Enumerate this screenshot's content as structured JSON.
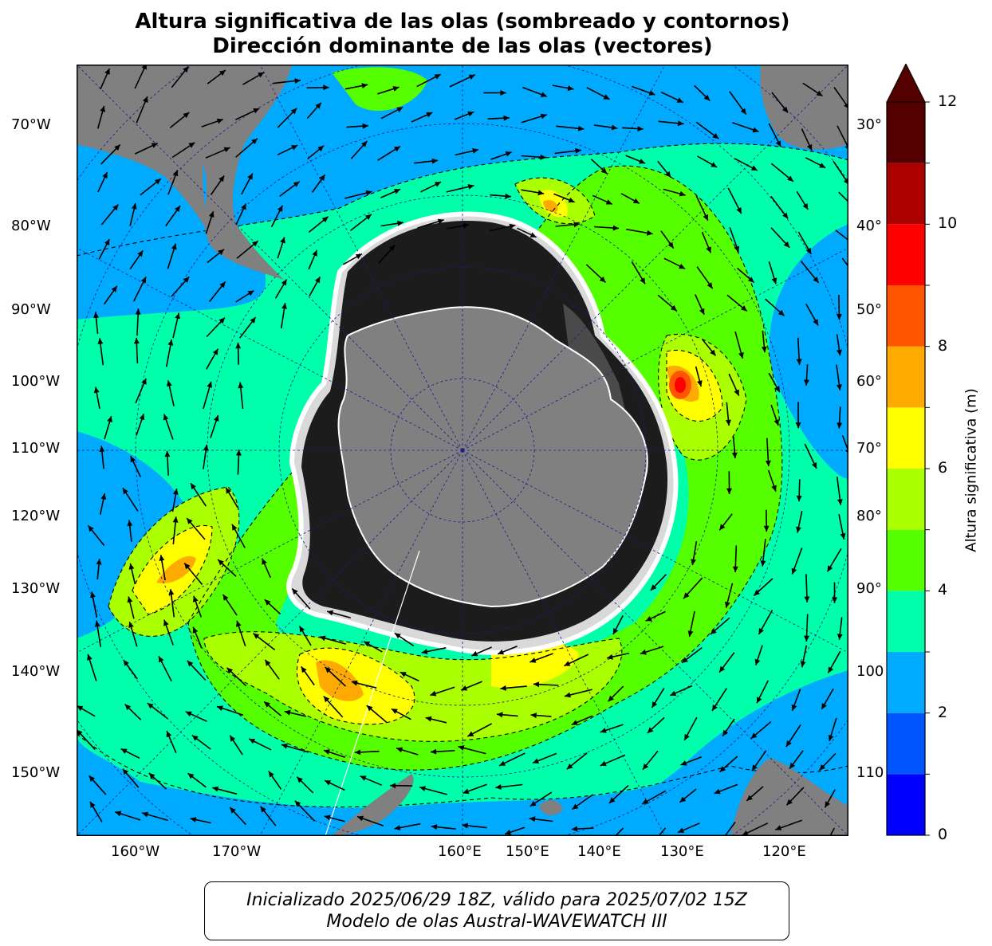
{
  "title_line1": "Altura significativa de las olas (sombreado y contornos)",
  "title_line2": "Dirección dominante de las olas (vectores)",
  "left_labels": [
    "70°W",
    "80°W",
    "90°W",
    "100°W",
    "110°W",
    "120°W",
    "130°W",
    "140°W",
    "150°W"
  ],
  "right_labels": [
    "30°",
    "40°",
    "50°",
    "60°",
    "70°",
    "80°",
    "90°",
    "100",
    "110"
  ],
  "bottom_labels": [
    "160°W",
    "170°W",
    "160°E",
    "150°E",
    "140°E",
    "130°E",
    "120°E"
  ],
  "colorbar": {
    "label": "Altura significativa (m)",
    "ticks": [
      "0",
      "2",
      "4",
      "6",
      "8",
      "10",
      "12"
    ],
    "tick_values": [
      0,
      2,
      4,
      6,
      8,
      10,
      12
    ],
    "range": [
      0,
      12
    ],
    "extend": "max",
    "levels": [
      {
        "from": 0,
        "to": 1,
        "color": "#0000ff"
      },
      {
        "from": 1,
        "to": 2,
        "color": "#0055ff"
      },
      {
        "from": 2,
        "to": 3,
        "color": "#00aaff"
      },
      {
        "from": 3,
        "to": 4,
        "color": "#00ffaa"
      },
      {
        "from": 4,
        "to": 5,
        "color": "#55ff00"
      },
      {
        "from": 5,
        "to": 6,
        "color": "#aaff00"
      },
      {
        "from": 6,
        "to": 7,
        "color": "#ffff00"
      },
      {
        "from": 7,
        "to": 8,
        "color": "#ffaa00"
      },
      {
        "from": 8,
        "to": 9,
        "color": "#ff5500"
      },
      {
        "from": 9,
        "to": 10,
        "color": "#ff0000"
      },
      {
        "from": 10,
        "to": 11,
        "color": "#aa0000"
      },
      {
        "from": 11,
        "to": 12,
        "color": "#550000"
      }
    ]
  },
  "colors": {
    "land": "#808080",
    "ice_dark": "#111111",
    "graticule": "#1a1a8c"
  },
  "footer_line1": "Inicializado 2025/06/29 18Z, válido para 2025/07/02 15Z",
  "footer_line2": "Modelo de olas Austral-WAVEWATCH III"
}
